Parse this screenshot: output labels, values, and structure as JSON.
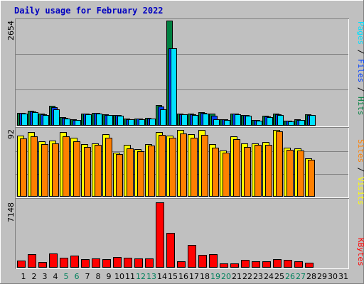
{
  "chart_data": {
    "type": "bar",
    "title": "Daily usage for February 2022",
    "days": [
      "1",
      "2",
      "3",
      "4",
      "5",
      "6",
      "7",
      "8",
      "9",
      "10",
      "11",
      "12",
      "13",
      "14",
      "15",
      "16",
      "17",
      "18",
      "19",
      "20",
      "21",
      "22",
      "23",
      "24",
      "25",
      "26",
      "27",
      "28",
      "29",
      "30",
      "31"
    ],
    "weekend_days": [
      5,
      6,
      12,
      13,
      19,
      20,
      26,
      27
    ],
    "colors": {
      "background": "#c0c0c0",
      "plot_background": "#c0c0c0",
      "hits": "#008040",
      "files": "#0040ff",
      "pages": "#00e0ff",
      "visits": "#ffff00",
      "sites": "#ff8000",
      "kbytes": "#ff0000",
      "title": "#0000c0",
      "weekend_tick": "#00805c",
      "weekday_tick": "#000000"
    },
    "panels": [
      {
        "id": "hits-files-pages",
        "ymax_label": "2654",
        "ymax": 2654,
        "right_label_parts": [
          {
            "text": "Pages",
            "color": "#00e0ff"
          },
          {
            "text": " / ",
            "color": "#000000"
          },
          {
            "text": "Files",
            "color": "#0040ff"
          },
          {
            "text": " / ",
            "color": "#000000"
          },
          {
            "text": "Hits",
            "color": "#008040"
          }
        ],
        "series": [
          {
            "name": "Hits",
            "color": "#008040",
            "values": [
              310,
              360,
              290,
              490,
              190,
              140,
              290,
              310,
              270,
              260,
              160,
              170,
              180,
              500,
              2654,
              280,
              280,
              320,
              290,
              150,
              290,
              260,
              130,
              230,
              280,
              110,
              140,
              270,
              0,
              0,
              0
            ]
          },
          {
            "name": "Files",
            "color": "#0040ff",
            "values": [
              300,
              350,
              270,
              460,
              180,
              130,
              280,
              300,
              260,
              250,
              150,
              160,
              170,
              470,
              1950,
              270,
              270,
              300,
              230,
              140,
              280,
              250,
              120,
              220,
              270,
              100,
              130,
              260,
              0,
              0,
              0
            ]
          },
          {
            "name": "Pages",
            "color": "#00e0ff",
            "values": [
              290,
              320,
              260,
              400,
              160,
              120,
              270,
              290,
              250,
              240,
              140,
              150,
              160,
              390,
              1950,
              270,
              260,
              290,
              150,
              120,
              270,
              230,
              110,
              200,
              250,
              90,
              120,
              250,
              0,
              0,
              0
            ]
          }
        ]
      },
      {
        "id": "visits-sites",
        "ymax_label": "92",
        "ymax": 92,
        "right_label_parts": [
          {
            "text": "Sites",
            "color": "#ff8000"
          },
          {
            "text": " / ",
            "color": "#000000"
          },
          {
            "text": "Visits",
            "color": "#ffff00"
          }
        ],
        "series": [
          {
            "name": "Visits",
            "color": "#ffff00",
            "values": [
              83,
              88,
              75,
              76,
              88,
              80,
              71,
              72,
              85,
              60,
              70,
              65,
              71,
              88,
              83,
              91,
              85,
              91,
              71,
              63,
              82,
              72,
              72,
              74,
              91,
              67,
              66,
              52,
              0,
              0,
              0
            ]
          },
          {
            "name": "Sites",
            "color": "#ff8000",
            "values": [
              79,
              82,
              71,
              72,
              82,
              75,
              68,
              70,
              80,
              58,
              66,
              62,
              69,
              84,
              80,
              86,
              80,
              84,
              67,
              60,
              78,
              68,
              70,
              70,
              89,
              64,
              63,
              50,
              0,
              0,
              0
            ]
          }
        ]
      },
      {
        "id": "kbytes",
        "ymax_label": "7148",
        "ymax": 7148,
        "right_label_parts": [
          {
            "text": "KBytes",
            "color": "#ff0000"
          }
        ],
        "series": [
          {
            "name": "KBytes",
            "color": "#ff0000",
            "values": [
              700,
              1400,
              550,
              1500,
              1000,
              1250,
              890,
              950,
              880,
              1100,
              1000,
              930,
              950,
              7148,
              3800,
              650,
              2400,
              1300,
              1430,
              400,
              400,
              750,
              660,
              650,
              850,
              750,
              640,
              450,
              0,
              0,
              0
            ]
          }
        ]
      }
    ]
  }
}
